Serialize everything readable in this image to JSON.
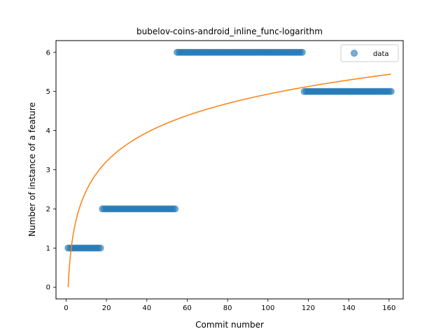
{
  "chart_data": {
    "type": "scatter",
    "title": "bubelov-coins-android_inline_func-logarithm",
    "xlabel": "Commit number",
    "ylabel": "Number of instance of a feature",
    "xlim": [
      -5,
      167
    ],
    "ylim": [
      -0.3,
      6.3
    ],
    "xticks": [
      0,
      20,
      40,
      60,
      80,
      100,
      120,
      140,
      160
    ],
    "yticks": [
      0,
      1,
      2,
      3,
      4,
      5,
      6
    ],
    "legend": {
      "position": "top-right",
      "entries": [
        "data"
      ]
    },
    "colors": {
      "data": "#1f77b4",
      "fit": "#ff7f0e"
    },
    "series": [
      {
        "name": "data",
        "kind": "scatter",
        "segments": [
          {
            "x_start": 1,
            "x_end": 17,
            "y": 1
          },
          {
            "x_start": 18,
            "x_end": 54,
            "y": 2
          },
          {
            "x_start": 55,
            "x_end": 117,
            "y": 6
          },
          {
            "x_start": 118,
            "x_end": 161,
            "y": 5
          }
        ]
      },
      {
        "name": "fit",
        "kind": "line",
        "model": "y = a * ln(x)",
        "a": 1.071,
        "x_range": [
          1,
          161
        ]
      }
    ]
  }
}
